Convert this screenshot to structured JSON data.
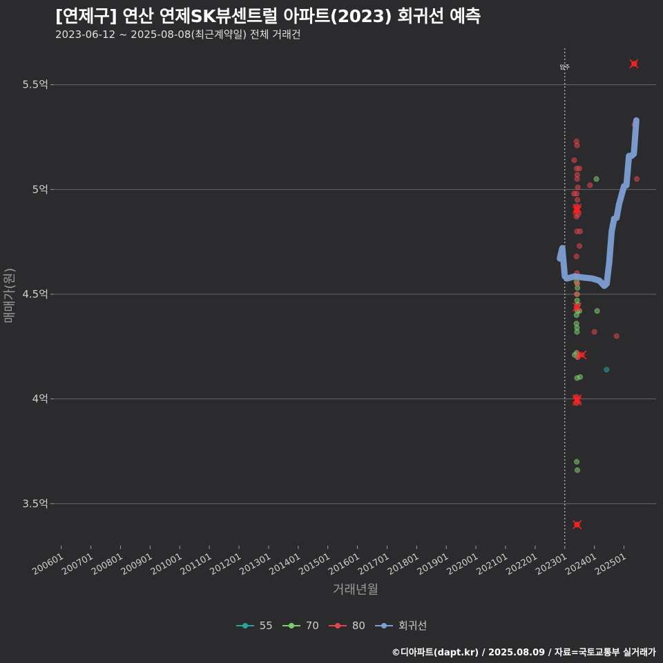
{
  "title": "[연제구] 연산 연제SK뷰센트럴 아파트(2023) 회귀선 예측",
  "subtitle": "2023-06-12 ~ 2025-08-08(최근계약일) 전체 거래건",
  "caption": "©디아파트(dapt.kr) / 2025.08.09 / 자료=국토교통부 실거래가",
  "colors": {
    "background": "#2b2b2d",
    "grid": "#6a6a6a",
    "s55": "#2aa39b",
    "s70": "#7ccd6b",
    "s80": "#e0454c",
    "regression": "#7c9fd3",
    "outlier": "#ff2020"
  },
  "chart_data": {
    "type": "scatter",
    "xlabel": "거래년월",
    "ylabel": "매매가(원)",
    "ylim": [
      3.3,
      5.7
    ],
    "xlim": [
      "2005-10",
      "2026-02"
    ],
    "y_ticks": [
      {
        "value": 3.5,
        "label": "3.5억"
      },
      {
        "value": 4.0,
        "label": "4억"
      },
      {
        "value": 4.5,
        "label": "4.5억"
      },
      {
        "value": 5.0,
        "label": "5억"
      },
      {
        "value": 5.5,
        "label": "5.5억"
      }
    ],
    "x_ticks": [
      "200601",
      "200701",
      "200801",
      "200901",
      "201001",
      "201101",
      "201201",
      "201301",
      "201401",
      "201501",
      "201601",
      "201701",
      "201801",
      "201901",
      "202001",
      "202101",
      "202201",
      "202301",
      "202401",
      "202501"
    ],
    "movein": {
      "x": "2023-01",
      "label": "입주"
    },
    "legend": [
      "55",
      "70",
      "80",
      "회귀선"
    ],
    "series": [
      {
        "name": "55",
        "points": [
          [
            "2024-06",
            4.14
          ]
        ]
      },
      {
        "name": "70",
        "points": [
          [
            "2023-06",
            4.56
          ],
          [
            "2023-06",
            4.55
          ],
          [
            "2023-06",
            4.53
          ],
          [
            "2023-06",
            4.5
          ],
          [
            "2023-06",
            4.47
          ],
          [
            "2023-06",
            4.45
          ],
          [
            "2023-06",
            4.42
          ],
          [
            "2023-06",
            4.4
          ],
          [
            "2023-06",
            4.36
          ],
          [
            "2023-06",
            4.34
          ],
          [
            "2023-06",
            4.32
          ],
          [
            "2023-06",
            4.22
          ],
          [
            "2023-06",
            4.2
          ],
          [
            "2023-05",
            4.21
          ],
          [
            "2023-06",
            4.1
          ],
          [
            "2023-07",
            4.105
          ],
          [
            "2023-06",
            3.7
          ],
          [
            "2023-06",
            3.66
          ],
          [
            "2023-07",
            4.42
          ],
          [
            "2024-02",
            4.42
          ],
          [
            "2024-02",
            5.05
          ]
        ]
      },
      {
        "name": "80",
        "points": [
          [
            "2023-06",
            5.23
          ],
          [
            "2023-06",
            5.21
          ],
          [
            "2023-05",
            5.14
          ],
          [
            "2023-06",
            5.1
          ],
          [
            "2023-07",
            5.1
          ],
          [
            "2023-06",
            5.07
          ],
          [
            "2023-06",
            5.05
          ],
          [
            "2023-06",
            5.01
          ],
          [
            "2023-06",
            4.98
          ],
          [
            "2023-05",
            4.98
          ],
          [
            "2023-06",
            4.95
          ],
          [
            "2023-06",
            4.92
          ],
          [
            "2023-06",
            4.9
          ],
          [
            "2023-06",
            4.88
          ],
          [
            "2023-06",
            4.87
          ],
          [
            "2023-06",
            4.8
          ],
          [
            "2023-07",
            4.8
          ],
          [
            "2023-07",
            4.73
          ],
          [
            "2023-06",
            4.68
          ],
          [
            "2023-06",
            4.6
          ],
          [
            "2023-06",
            4.58
          ],
          [
            "2023-06",
            4.55
          ],
          [
            "2023-06",
            4.5
          ],
          [
            "2023-06",
            4.44
          ],
          [
            "2023-06",
            4.43
          ],
          [
            "2023-06",
            4.2
          ],
          [
            "2023-07",
            4.21
          ],
          [
            "2023-06",
            4.01
          ],
          [
            "2023-06",
            3.98
          ],
          [
            "2023-06",
            3.4
          ],
          [
            "2023-11",
            5.02
          ],
          [
            "2024-01",
            4.32
          ],
          [
            "2024-10",
            4.3
          ],
          [
            "2025-05",
            5.6
          ],
          [
            "2025-05",
            5.31
          ],
          [
            "2025-06",
            5.05
          ]
        ]
      }
    ],
    "outliers": [
      [
        "2023-06",
        4.91
      ],
      [
        "2023-06",
        4.9
      ],
      [
        "2023-06",
        4.44
      ],
      [
        "2023-06",
        4.0
      ],
      [
        "2023-06",
        3.99
      ],
      [
        "2023-08",
        4.21
      ],
      [
        "2023-06",
        3.4
      ],
      [
        "2025-05",
        5.6
      ]
    ],
    "regression": [
      [
        "2022-11",
        4.67
      ],
      [
        "2022-12",
        4.72
      ],
      [
        "2023-01",
        4.585
      ],
      [
        "2023-02",
        4.575
      ],
      [
        "2023-05",
        4.585
      ],
      [
        "2023-08",
        4.58
      ],
      [
        "2023-12",
        4.575
      ],
      [
        "2024-03",
        4.565
      ],
      [
        "2024-05",
        4.54
      ],
      [
        "2024-06",
        4.55
      ],
      [
        "2024-07",
        4.65
      ],
      [
        "2024-08",
        4.8
      ],
      [
        "2024-09",
        4.86
      ],
      [
        "2024-10",
        4.865
      ],
      [
        "2024-11",
        4.93
      ],
      [
        "2025-01",
        5.015
      ],
      [
        "2025-02",
        5.02
      ],
      [
        "2025-03",
        5.16
      ],
      [
        "2025-04",
        5.16
      ],
      [
        "2025-05",
        5.17
      ],
      [
        "2025-06",
        5.33
      ]
    ]
  }
}
